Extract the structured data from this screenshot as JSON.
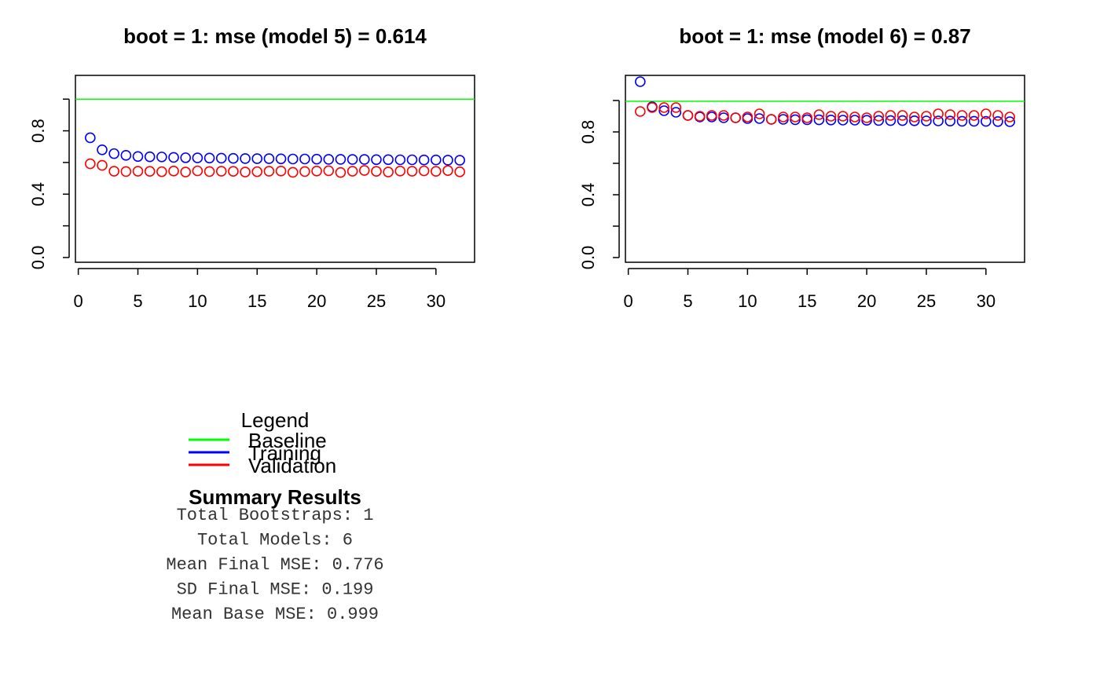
{
  "chart_data": [
    {
      "type": "scatter",
      "title": "boot = 1: mse (model 5) = 0.614",
      "x": [
        1,
        2,
        3,
        4,
        5,
        6,
        7,
        8,
        9,
        10,
        11,
        12,
        13,
        14,
        15,
        16,
        17,
        18,
        19,
        20,
        21,
        22,
        23,
        24,
        25,
        26,
        27,
        28,
        29,
        30,
        31,
        32
      ],
      "series": [
        {
          "color": "#0000ff",
          "values": [
            0.756,
            0.68,
            0.656,
            0.645,
            0.638,
            0.636,
            0.635,
            0.632,
            0.63,
            0.629,
            0.628,
            0.627,
            0.626,
            0.625,
            0.624,
            0.624,
            0.623,
            0.622,
            0.622,
            0.621,
            0.62,
            0.62,
            0.619,
            0.619,
            0.618,
            0.618,
            0.617,
            0.617,
            0.616,
            0.616,
            0.615,
            0.614
          ]
        },
        {
          "color": "#ff0000",
          "values": [
            0.592,
            0.582,
            0.545,
            0.543,
            0.545,
            0.544,
            0.542,
            0.546,
            0.54,
            0.547,
            0.543,
            0.545,
            0.544,
            0.54,
            0.542,
            0.545,
            0.546,
            0.538,
            0.543,
            0.546,
            0.548,
            0.537,
            0.545,
            0.55,
            0.544,
            0.54,
            0.546,
            0.545,
            0.547,
            0.544,
            0.549,
            0.541
          ]
        }
      ],
      "baseline": 1.0,
      "baseline_color": "#00ff00",
      "xlim": [
        -0.24,
        33.24
      ],
      "ylim": [
        -0.03,
        1.15
      ],
      "xticks": [
        0,
        5,
        10,
        15,
        20,
        25,
        30
      ],
      "yticks": [
        {
          "value": 0,
          "label": "0.0"
        },
        0.4,
        0.8
      ],
      "yticks_unlabeled": [
        0.2,
        0.6,
        1.0
      ]
    },
    {
      "type": "scatter",
      "title": "boot = 1: mse (model 6) = 0.87",
      "x": [
        1,
        2,
        3,
        4,
        5,
        6,
        7,
        8,
        9,
        10,
        11,
        12,
        13,
        14,
        15,
        16,
        17,
        18,
        19,
        20,
        21,
        22,
        23,
        24,
        25,
        26,
        27,
        28,
        29,
        30,
        31,
        32
      ],
      "series": [
        {
          "color": "#0000ff",
          "values": [
            1.12,
            0.96,
            0.935,
            0.925,
            0.905,
            0.895,
            0.895,
            0.89,
            0.89,
            0.885,
            0.885,
            0.88,
            0.88,
            0.878,
            0.878,
            0.877,
            0.876,
            0.875,
            0.875,
            0.874,
            0.873,
            0.872,
            0.872,
            0.871,
            0.87,
            0.87,
            0.869,
            0.868,
            0.868,
            0.867,
            0.866,
            0.865
          ]
        },
        {
          "color": "#ff0000",
          "values": [
            0.93,
            0.955,
            0.955,
            0.955,
            0.905,
            0.9,
            0.905,
            0.905,
            0.89,
            0.895,
            0.915,
            0.88,
            0.895,
            0.895,
            0.89,
            0.91,
            0.9,
            0.9,
            0.895,
            0.89,
            0.9,
            0.905,
            0.905,
            0.895,
            0.9,
            0.915,
            0.91,
            0.905,
            0.905,
            0.915,
            0.905,
            0.895
          ]
        }
      ],
      "baseline": 0.995,
      "baseline_color": "#00ff00",
      "xlim": [
        -0.24,
        33.24
      ],
      "ylim": [
        -0.03,
        1.16
      ],
      "xticks": [
        0,
        5,
        10,
        15,
        20,
        25,
        30
      ],
      "yticks": [
        {
          "value": 0,
          "label": "0.0"
        },
        0.4,
        0.8
      ],
      "yticks_unlabeled": [
        0.2,
        0.6,
        1.0
      ]
    }
  ],
  "legend": {
    "title": "Legend",
    "items": [
      {
        "name": "Baseline",
        "color": "#00ff00"
      },
      {
        "name": "Training",
        "color": "#0000ff"
      },
      {
        "name": "Validation",
        "color": "#ff0000"
      }
    ]
  },
  "summary": {
    "title": "Summary Results",
    "lines": [
      "Total Bootstraps: 1",
      "Total Models: 6",
      "Mean Final MSE: 0.776",
      "SD Final MSE: 0.199",
      "Mean Base MSE: 0.999"
    ]
  }
}
